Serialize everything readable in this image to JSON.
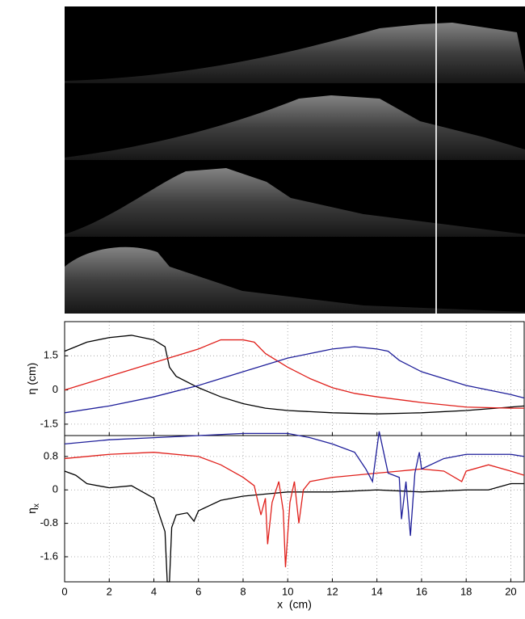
{
  "chart_data": [
    {
      "type": "line",
      "ylabel": "η (cm)",
      "xlim": [
        0,
        20.6
      ],
      "xticks": [
        0,
        2,
        4,
        6,
        8,
        10,
        12,
        14,
        16,
        18,
        20
      ],
      "ylim": [
        -2,
        3
      ],
      "yticks": [
        1.5,
        0,
        -1.5
      ],
      "grid": true,
      "series": [
        {
          "color": "#000000",
          "x": [
            0,
            1,
            2,
            3,
            4,
            4.5,
            4.7,
            5,
            6,
            7,
            8,
            9,
            10,
            12,
            14,
            16,
            18,
            20,
            20.6
          ],
          "values": [
            1.7,
            2.1,
            2.3,
            2.4,
            2.2,
            1.9,
            1.0,
            0.6,
            0.1,
            -0.3,
            -0.6,
            -0.8,
            -0.9,
            -1.0,
            -1.05,
            -1.0,
            -0.9,
            -0.75,
            -0.7
          ]
        },
        {
          "color": "#e0201b",
          "x": [
            0,
            2,
            4,
            6,
            7,
            8,
            8.5,
            9,
            10,
            11,
            12,
            13,
            14,
            16,
            18,
            20,
            20.6
          ],
          "values": [
            0,
            0.6,
            1.2,
            1.8,
            2.2,
            2.2,
            2.1,
            1.6,
            1.0,
            0.5,
            0.1,
            -0.15,
            -0.3,
            -0.55,
            -0.75,
            -0.8,
            -0.8
          ]
        },
        {
          "color": "#1f1f9a",
          "x": [
            0,
            2,
            4,
            6,
            8,
            10,
            12,
            13,
            14,
            14.5,
            15,
            16,
            17,
            18,
            19,
            20,
            20.6
          ],
          "values": [
            -1.0,
            -0.7,
            -0.3,
            0.2,
            0.8,
            1.4,
            1.8,
            1.9,
            1.8,
            1.7,
            1.3,
            0.8,
            0.5,
            0.2,
            0,
            -0.2,
            -0.35
          ]
        }
      ]
    },
    {
      "type": "line",
      "ylabel": "η",
      "ylabel_subscript": "x",
      "xlabel": "x  (cm)",
      "xlim": [
        0,
        20.6
      ],
      "xticks": [
        0,
        2,
        4,
        6,
        8,
        10,
        12,
        14,
        16,
        18,
        20
      ],
      "ylim": [
        -2.2,
        1.3
      ],
      "yticks": [
        0.8,
        0,
        -0.8,
        -1.6
      ],
      "grid": true,
      "series": [
        {
          "color": "#000000",
          "x": [
            0,
            0.5,
            1,
            2,
            3,
            4,
            4.5,
            4.6,
            4.7,
            4.8,
            5,
            5.5,
            5.8,
            6,
            7,
            8,
            9,
            10,
            12,
            14,
            16,
            18,
            19,
            20,
            20.6
          ],
          "values": [
            0.45,
            0.35,
            0.15,
            0.05,
            0.1,
            -0.2,
            -1.0,
            -2.2,
            -2.2,
            -0.9,
            -0.6,
            -0.55,
            -0.75,
            -0.5,
            -0.25,
            -0.15,
            -0.1,
            -0.05,
            -0.05,
            0.0,
            -0.05,
            0.0,
            0.0,
            0.15,
            0.15
          ]
        },
        {
          "color": "#e0201b",
          "x": [
            0,
            2,
            4,
            6,
            7,
            8,
            8.5,
            8.8,
            9,
            9.1,
            9.3,
            9.6,
            9.8,
            9.9,
            10.1,
            10.3,
            10.5,
            10.7,
            11,
            12,
            13,
            14,
            15,
            16,
            17,
            17.8,
            18,
            19,
            20,
            20.6
          ],
          "values": [
            0.75,
            0.85,
            0.9,
            0.8,
            0.6,
            0.3,
            0.1,
            -0.6,
            -0.2,
            -1.3,
            -0.3,
            0.2,
            -0.5,
            -1.85,
            -0.3,
            0.2,
            -0.8,
            0.0,
            0.2,
            0.3,
            0.35,
            0.4,
            0.45,
            0.5,
            0.45,
            0.2,
            0.45,
            0.6,
            0.45,
            0.35
          ]
        },
        {
          "color": "#1f1f9a",
          "x": [
            0,
            2,
            4,
            6,
            8,
            10,
            11,
            12,
            13,
            13.5,
            13.8,
            14,
            14.1,
            14.3,
            14.5,
            15,
            15.1,
            15.3,
            15.5,
            15.7,
            15.9,
            16,
            17,
            18,
            20,
            20.6
          ],
          "values": [
            1.1,
            1.2,
            1.25,
            1.3,
            1.35,
            1.35,
            1.25,
            1.1,
            0.9,
            0.5,
            0.2,
            1.0,
            1.4,
            0.9,
            0.4,
            0.3,
            -0.7,
            0.2,
            -1.1,
            0.4,
            0.9,
            0.5,
            0.75,
            0.85,
            0.85,
            0.8
          ]
        }
      ]
    }
  ]
}
